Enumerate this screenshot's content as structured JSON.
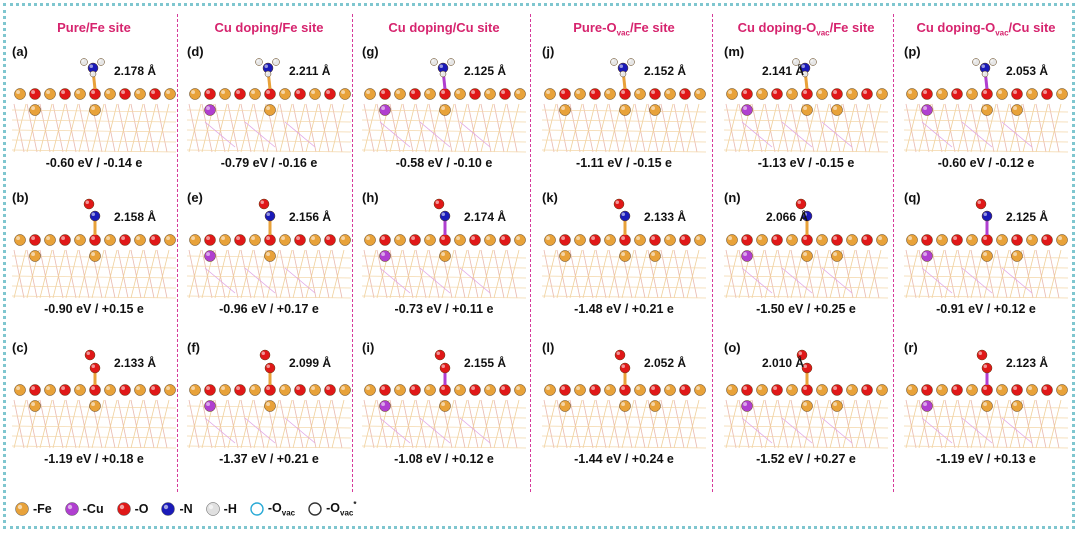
{
  "columns": [
    {
      "title_html": "Pure/Fe site"
    },
    {
      "title_html": "Cu doping/Fe site"
    },
    {
      "title_html": "Cu doping/Cu site"
    },
    {
      "title_html": "Pure-O<sub>vac</sub>/Fe site"
    },
    {
      "title_html": "Cu doping-O<sub>vac</sub>/Fe site"
    },
    {
      "title_html": "Cu doping-O<sub>vac</sub>/Cu site"
    }
  ],
  "panels": [
    {
      "label": "(a)",
      "distance": "2.178 Å",
      "energy": "-0.60 eV /  -0.14 e",
      "ads": "NH3",
      "cu": false,
      "cuTop": false,
      "vac": false
    },
    {
      "label": "(b)",
      "distance": "2.158 Å",
      "energy": "-0.90 eV / +0.15 e",
      "ads": "NO",
      "cu": false,
      "cuTop": false,
      "vac": false
    },
    {
      "label": "(c)",
      "distance": "2.133 Å",
      "energy": "-1.19 eV / +0.18 e",
      "ads": "O2",
      "cu": false,
      "cuTop": false,
      "vac": false
    },
    {
      "label": "(d)",
      "distance": "2.211 Å",
      "energy": "-0.79 eV / -0.16 e",
      "ads": "NH3",
      "cu": true,
      "cuTop": false,
      "vac": false
    },
    {
      "label": "(e)",
      "distance": "2.156 Å",
      "energy": "-0.96 eV / +0.17 e",
      "ads": "NO",
      "cu": true,
      "cuTop": false,
      "vac": false
    },
    {
      "label": "(f)",
      "distance": "2.099 Å",
      "energy": "-1.37 eV / +0.21 e",
      "ads": "O2",
      "cu": true,
      "cuTop": false,
      "vac": false
    },
    {
      "label": "(g)",
      "distance": "2.125 Å",
      "energy": "-0.58 eV / -0.10 e",
      "ads": "NH3",
      "cu": true,
      "cuTop": true,
      "vac": false
    },
    {
      "label": "(h)",
      "distance": "2.174 Å",
      "energy": "-0.73 eV / +0.11 e",
      "ads": "NO",
      "cu": true,
      "cuTop": true,
      "vac": false
    },
    {
      "label": "(i)",
      "distance": "2.155 Å",
      "energy": "-1.08 eV / +0.12 e",
      "ads": "O2",
      "cu": true,
      "cuTop": true,
      "vac": false
    },
    {
      "label": "(j)",
      "distance": "2.152 Å",
      "energy": "-1.11 eV / -0.15 e",
      "ads": "NH3",
      "cu": false,
      "cuTop": false,
      "vac": true
    },
    {
      "label": "(k)",
      "distance": "2.133 Å",
      "energy": "-1.48 eV / +0.21 e",
      "ads": "NO",
      "cu": false,
      "cuTop": false,
      "vac": true
    },
    {
      "label": "(l)",
      "distance": "2.052 Å",
      "energy": "-1.44 eV / +0.24 e",
      "ads": "O2",
      "cu": false,
      "cuTop": false,
      "vac": true
    },
    {
      "label": "(m)",
      "distance": "2.141 Å",
      "energy": "-1.13 eV / -0.15 e",
      "ads": "NH3",
      "cu": true,
      "cuTop": false,
      "vac": true
    },
    {
      "label": "(n)",
      "distance": "2.066 Å",
      "energy": "-1.50 eV / +0.25 e",
      "ads": "NO",
      "cu": true,
      "cuTop": false,
      "vac": true
    },
    {
      "label": "(o)",
      "distance": "2.010 Å",
      "energy": "-1.52 eV / +0.27 e",
      "ads": "O2",
      "cu": true,
      "cuTop": false,
      "vac": true
    },
    {
      "label": "(p)",
      "distance": "2.053 Å",
      "energy": "-0.60 eV / -0.12 e",
      "ads": "NH3",
      "cu": true,
      "cuTop": true,
      "vac": true
    },
    {
      "label": "(q)",
      "distance": "2.125 Å",
      "energy": "-0.91 eV / +0.12 e",
      "ads": "NO",
      "cu": true,
      "cuTop": true,
      "vac": true
    },
    {
      "label": "(r)",
      "distance": "2.123 Å",
      "energy": "-1.19 eV / +0.13 e",
      "ads": "O2",
      "cu": true,
      "cuTop": true,
      "vac": true
    }
  ],
  "legend": [
    {
      "color": "#e8a23a",
      "type": "ball",
      "label_html": "-Fe"
    },
    {
      "color": "#b03fd0",
      "type": "ball",
      "label_html": "-Cu"
    },
    {
      "color": "#e01818",
      "type": "ball",
      "label_html": "-O"
    },
    {
      "color": "#1a1ab8",
      "type": "ball",
      "label_html": "-N"
    },
    {
      "color": "#e0e0e0",
      "type": "ball",
      "label_html": "-H"
    },
    {
      "color": "#2aaad6",
      "type": "ring",
      "label_html": "-O<sub>vac</sub>"
    },
    {
      "color": "#333333",
      "type": "ring",
      "label_html": "-O<sub>vac</sub><sup>*</sup>"
    }
  ],
  "colors": {
    "fe": "#e8a23a",
    "cu": "#b03fd0",
    "o": "#e01818",
    "n": "#1a1ab8",
    "h": "#e6e6e6",
    "vac": "#2aaad6",
    "title": "#d6246e",
    "frame": "#7fc6cf"
  }
}
